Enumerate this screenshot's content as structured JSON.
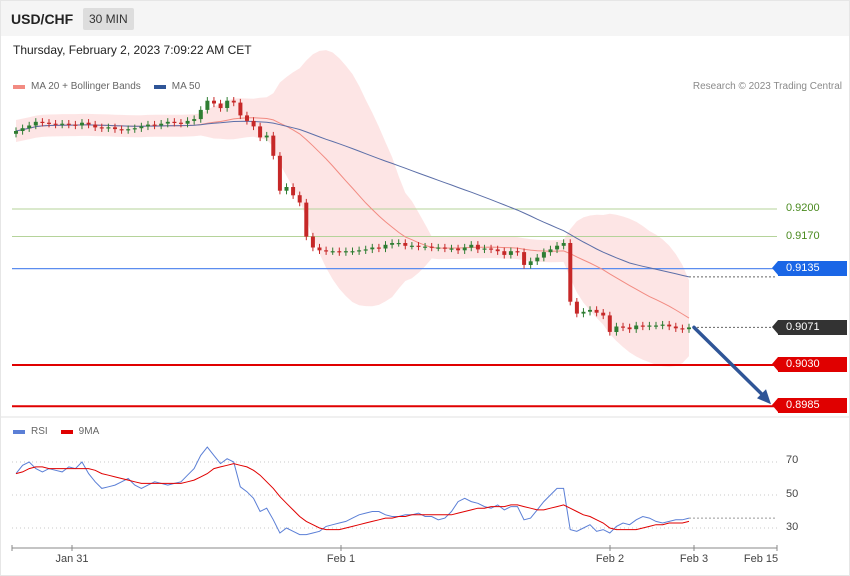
{
  "header": {
    "symbol": "USD/CHF",
    "timeframe": "30 MIN"
  },
  "datetime": "Thursday, February 2, 2023 7:09:22 AM CET",
  "copyright": "Research © 2023 Trading Central",
  "legend_main": [
    {
      "label": "MA 20 + Bollinger Bands",
      "color": "#f28b82"
    },
    {
      "label": "MA 50",
      "color": "#2f5597"
    }
  ],
  "legend_rsi": [
    {
      "label": "RSI",
      "color": "#5b7fd6"
    },
    {
      "label": "9MA",
      "color": "#e00000"
    }
  ],
  "colors": {
    "up_candle": "#2e7d32",
    "down_candle": "#c62828",
    "band_fill": "#fde0e0",
    "ma20": "#f28b82",
    "ma50": "#5c6fa8",
    "green_level": "#b5d39a",
    "blue_level": "#5b8def",
    "red_level": "#e00000",
    "arrow": "#2f5597"
  },
  "price_labels": [
    {
      "value": "0.9200",
      "style": "green"
    },
    {
      "value": "0.9170",
      "style": "green"
    },
    {
      "value": "0.9135",
      "style": "blue"
    },
    {
      "value": "0.9071",
      "style": "dark"
    },
    {
      "value": "0.9030",
      "style": "red"
    },
    {
      "value": "0.8985",
      "style": "red"
    }
  ],
  "rsi_ticks": [
    "70",
    "50",
    "30"
  ],
  "x_ticks": [
    "Jan 31",
    "Feb 1",
    "Feb 2",
    "Feb 3",
    "Feb 15"
  ],
  "chart_data": {
    "type": "candlestick",
    "symbol": "USD/CHF",
    "interval": "30 MIN",
    "y_range": [
      0.8985,
      0.931
    ],
    "levels": [
      {
        "price": 0.92,
        "kind": "resistance"
      },
      {
        "price": 0.917,
        "kind": "resistance"
      },
      {
        "price": 0.9135,
        "kind": "pivot"
      },
      {
        "price": 0.9071,
        "kind": "last"
      },
      {
        "price": 0.903,
        "kind": "support"
      },
      {
        "price": 0.8985,
        "kind": "support"
      }
    ],
    "target_arrow": {
      "from": 0.9071,
      "to": 0.8985
    },
    "close": [
      0.9285,
      0.9288,
      0.9291,
      0.9295,
      0.9294,
      0.9293,
      0.9292,
      0.9293,
      0.9292,
      0.9291,
      0.9294,
      0.9292,
      0.9289,
      0.9288,
      0.9289,
      0.9287,
      0.9286,
      0.9287,
      0.9288,
      0.929,
      0.9292,
      0.9291,
      0.9293,
      0.9295,
      0.9294,
      0.9293,
      0.9296,
      0.9298,
      0.9308,
      0.9318,
      0.9315,
      0.931,
      0.9318,
      0.9316,
      0.9302,
      0.9296,
      0.929,
      0.9278,
      0.928,
      0.9258,
      0.922,
      0.9224,
      0.9215,
      0.9207,
      0.917,
      0.9158,
      0.9155,
      0.9154,
      0.9154,
      0.9153,
      0.9154,
      0.9154,
      0.9155,
      0.9156,
      0.9158,
      0.9157,
      0.9161,
      0.9163,
      0.9163,
      0.916,
      0.916,
      0.9159,
      0.9159,
      0.9158,
      0.9158,
      0.9157,
      0.9157,
      0.9155,
      0.9158,
      0.9161,
      0.9156,
      0.9157,
      0.9156,
      0.9154,
      0.915,
      0.9154,
      0.9153,
      0.9139,
      0.9143,
      0.9147,
      0.9153,
      0.9156,
      0.916,
      0.9163,
      0.9099,
      0.9086,
      0.9088,
      0.909,
      0.9087,
      0.9084,
      0.9066,
      0.9072,
      0.9071,
      0.9069,
      0.9073,
      0.9072,
      0.9073,
      0.9073,
      0.9074,
      0.9072,
      0.907,
      0.9069,
      0.9071
    ],
    "rsi": [
      63,
      68,
      70,
      66,
      64,
      66,
      65,
      64,
      67,
      66,
      70,
      63,
      58,
      54,
      55,
      56,
      58,
      60,
      56,
      54,
      56,
      58,
      57,
      56,
      57,
      58,
      62,
      66,
      74,
      79,
      74,
      69,
      72,
      70,
      55,
      52,
      48,
      40,
      42,
      35,
      27,
      30,
      28,
      26,
      26,
      27,
      28,
      31,
      32,
      33,
      34,
      36,
      38,
      39,
      40,
      40,
      38,
      37,
      37,
      38,
      38,
      39,
      37,
      37,
      35,
      36,
      40,
      46,
      48,
      46,
      45,
      43,
      42,
      44,
      41,
      43,
      43,
      35,
      36,
      41,
      46,
      50,
      54,
      54,
      29,
      28,
      30,
      32,
      28,
      29,
      27,
      31,
      33,
      32,
      35,
      37,
      36,
      34,
      33,
      34,
      35,
      35,
      36
    ],
    "rsi_ma": [
      63,
      64,
      66,
      67,
      67,
      66,
      66,
      66,
      66,
      66,
      66,
      66,
      65,
      63,
      62,
      61,
      60,
      59,
      58,
      57,
      57,
      57,
      57,
      57,
      57,
      57,
      58,
      59,
      61,
      63,
      66,
      67,
      68,
      69,
      68,
      67,
      65,
      62,
      58,
      54,
      49,
      45,
      41,
      37,
      34,
      32,
      30,
      29,
      29,
      29,
      30,
      31,
      32,
      33,
      34,
      35,
      36,
      36,
      37,
      37,
      38,
      38,
      38,
      38,
      38,
      38,
      38,
      39,
      40,
      41,
      42,
      42,
      43,
      43,
      43,
      44,
      44,
      43,
      42,
      41,
      41,
      42,
      43,
      44,
      42,
      40,
      38,
      37,
      35,
      33,
      30,
      29,
      29,
      29,
      29,
      30,
      31,
      32,
      32,
      33,
      33,
      33,
      34
    ],
    "rsi_levels": [
      70,
      50,
      30
    ],
    "x_labels": [
      "Jan 31",
      "Feb 1",
      "Feb 2",
      "Feb 3",
      "Feb 15"
    ]
  }
}
